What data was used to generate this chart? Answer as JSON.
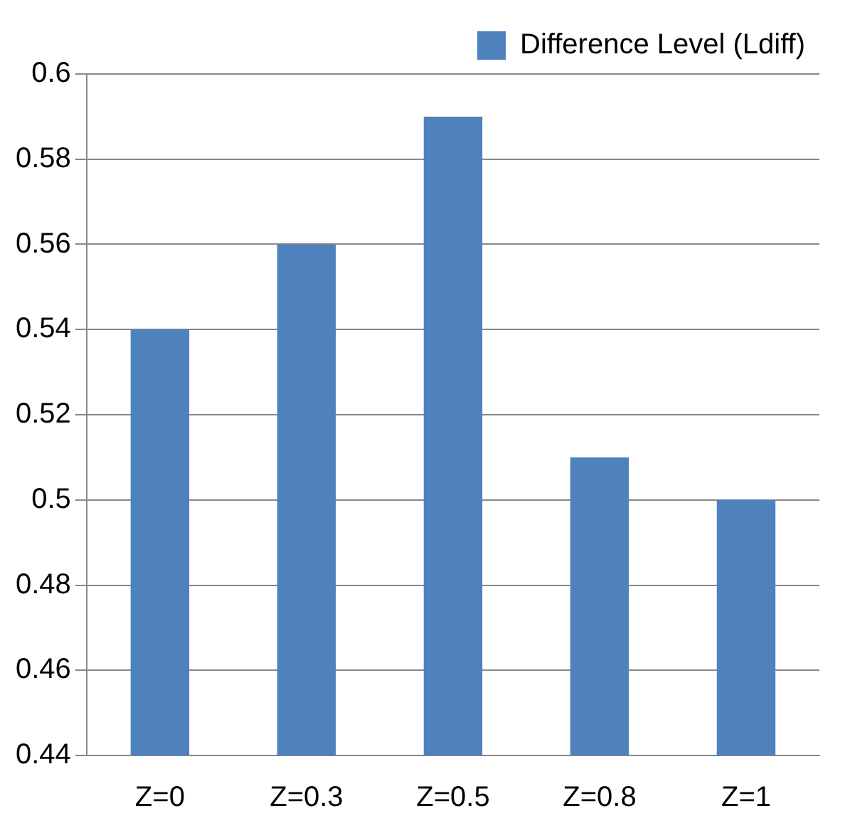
{
  "chart_data": {
    "type": "bar",
    "categories": [
      "Z=0",
      "Z=0.3",
      "Z=0.5",
      "Z=0.8",
      "Z=1"
    ],
    "series": [
      {
        "name": "Difference Level (Ldiff)",
        "color": "#4f81bd",
        "values": [
          0.54,
          0.56,
          0.59,
          0.51,
          0.5
        ]
      }
    ],
    "ylim": [
      0.44,
      0.6
    ],
    "yticks": [
      0.44,
      0.46,
      0.48,
      0.5,
      0.52,
      0.54,
      0.56,
      0.58,
      0.6
    ],
    "grid": "y",
    "legend": "top right"
  }
}
